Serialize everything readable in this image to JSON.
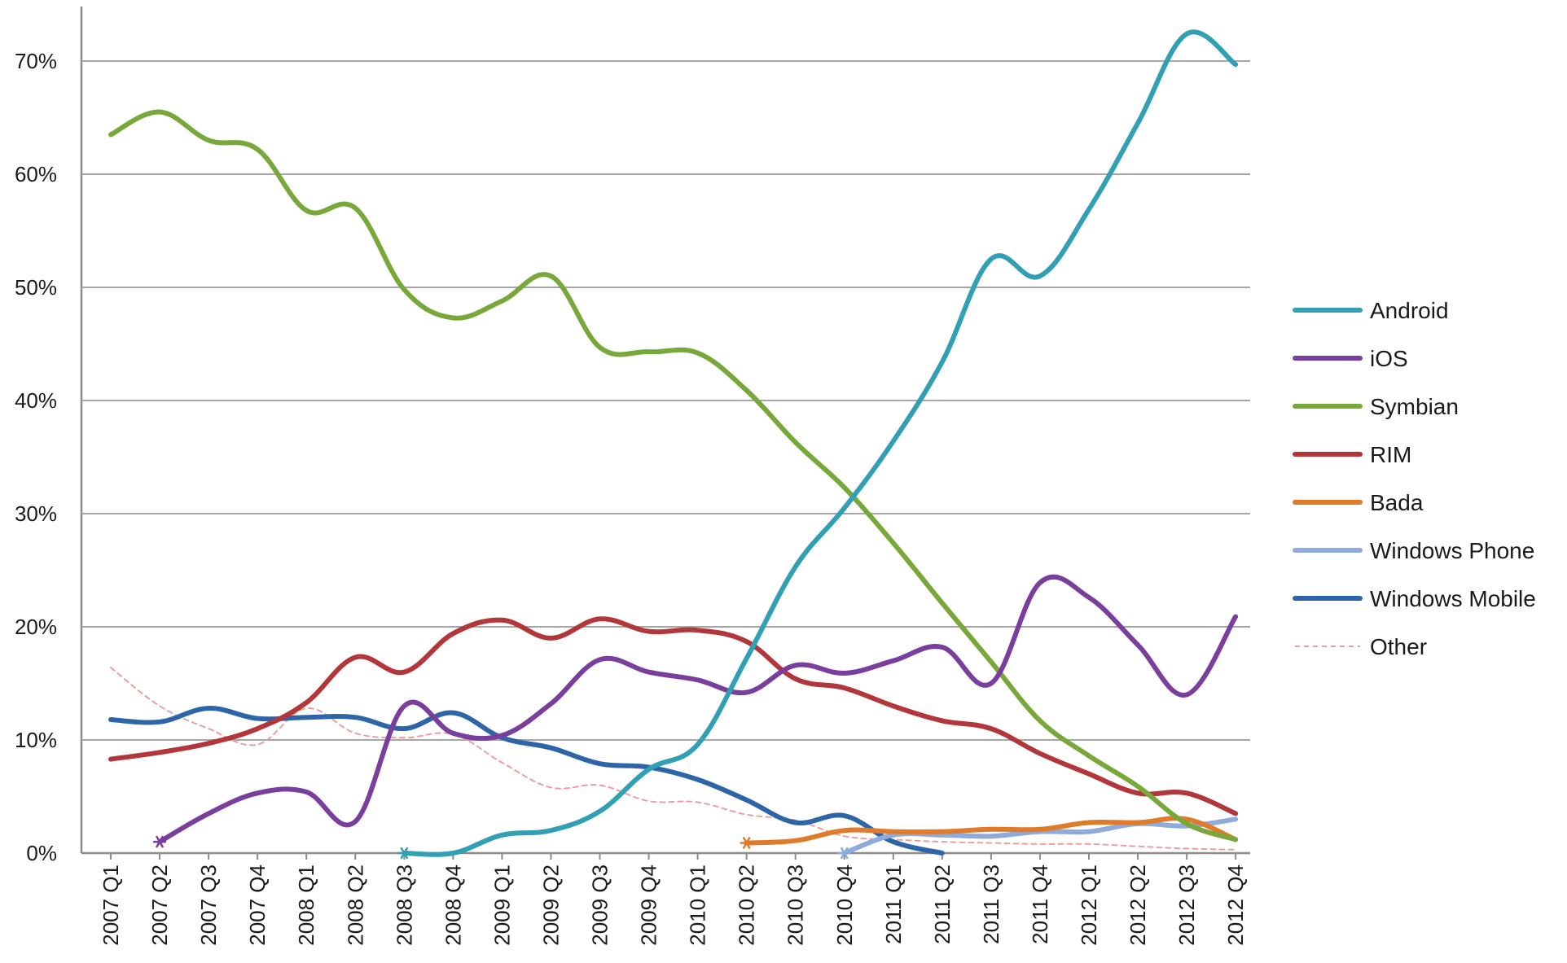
{
  "chart_data": {
    "type": "line",
    "title": "",
    "xlabel": "",
    "ylabel": "",
    "categories": [
      "2007 Q1",
      "2007 Q2",
      "2007 Q3",
      "2007 Q4",
      "2008 Q1",
      "2008 Q2",
      "2008 Q3",
      "2008 Q4",
      "2009 Q1",
      "2009 Q2",
      "2009 Q3",
      "2009 Q4",
      "2010 Q1",
      "2010 Q2",
      "2010 Q3",
      "2010 Q4",
      "2011 Q1",
      "2011 Q2",
      "2011 Q3",
      "2011 Q4",
      "2012 Q1",
      "2012 Q2",
      "2012 Q3",
      "2012 Q4"
    ],
    "y_ticks": [
      "0%",
      "10%",
      "20%",
      "30%",
      "40%",
      "50%",
      "60%",
      "70%"
    ],
    "ylim": [
      0,
      75
    ],
    "y_unit": "%",
    "grid": true,
    "legend_position": "right",
    "series": [
      {
        "name": "Android",
        "color": "#31a0b4",
        "style": "solid",
        "values": [
          null,
          null,
          null,
          null,
          null,
          null,
          0.0,
          0.0,
          1.6,
          2.0,
          3.7,
          7.4,
          9.6,
          17.2,
          25.3,
          30.5,
          36.4,
          43.4,
          52.5,
          51.0,
          56.9,
          64.5,
          72.4,
          69.7
        ]
      },
      {
        "name": "iOS",
        "color": "#7a3f9d",
        "style": "solid",
        "values": [
          null,
          1.0,
          3.5,
          5.3,
          5.4,
          2.8,
          13.0,
          10.6,
          10.4,
          13.2,
          17.1,
          16.0,
          15.3,
          14.2,
          16.6,
          15.9,
          17.0,
          18.2,
          15.0,
          23.9,
          22.6,
          18.4,
          14.0,
          20.9
        ]
      },
      {
        "name": "Symbian",
        "color": "#79a83a",
        "style": "solid",
        "values": [
          63.5,
          65.5,
          63.0,
          62.2,
          56.8,
          57.0,
          49.8,
          47.3,
          48.8,
          51.0,
          44.7,
          44.3,
          44.2,
          40.9,
          36.3,
          32.3,
          27.4,
          22.1,
          16.9,
          11.7,
          8.6,
          5.9,
          2.6,
          1.2
        ]
      },
      {
        "name": "RIM",
        "color": "#b3363a",
        "style": "solid",
        "values": [
          8.3,
          8.9,
          9.7,
          11.0,
          13.3,
          17.3,
          16.0,
          19.4,
          20.6,
          19.0,
          20.7,
          19.6,
          19.7,
          18.7,
          15.4,
          14.6,
          13.0,
          11.7,
          11.0,
          8.8,
          7.0,
          5.3,
          5.3,
          3.5
        ]
      },
      {
        "name": "Bada",
        "color": "#e07b2a",
        "style": "solid",
        "values": [
          null,
          null,
          null,
          null,
          null,
          null,
          null,
          null,
          null,
          null,
          null,
          null,
          null,
          0.9,
          1.1,
          2.0,
          1.9,
          1.9,
          2.1,
          2.1,
          2.7,
          2.7,
          3.0,
          1.2
        ]
      },
      {
        "name": "Windows Phone",
        "color": "#8faadc",
        "style": "solid",
        "values": [
          null,
          null,
          null,
          null,
          null,
          null,
          null,
          null,
          null,
          null,
          null,
          null,
          null,
          null,
          null,
          0.0,
          1.6,
          1.6,
          1.5,
          1.9,
          1.9,
          2.6,
          2.4,
          3.0
        ]
      },
      {
        "name": "Windows Mobile",
        "color": "#2e64a8",
        "style": "solid",
        "values": [
          11.8,
          11.6,
          12.8,
          11.9,
          12.0,
          12.0,
          11.0,
          12.4,
          10.2,
          9.3,
          7.9,
          7.6,
          6.5,
          4.7,
          2.7,
          3.3,
          1.0,
          0.0,
          null,
          null,
          null,
          null,
          null,
          null
        ]
      },
      {
        "name": "Other",
        "color": "#e8a0a0",
        "style": "dashed",
        "values": [
          16.4,
          13.0,
          11.0,
          9.6,
          12.8,
          10.6,
          10.2,
          10.5,
          8.0,
          5.8,
          6.0,
          4.6,
          4.5,
          3.4,
          2.9,
          1.5,
          1.2,
          1.0,
          0.9,
          0.8,
          0.8,
          0.6,
          0.4,
          0.3
        ]
      }
    ]
  }
}
